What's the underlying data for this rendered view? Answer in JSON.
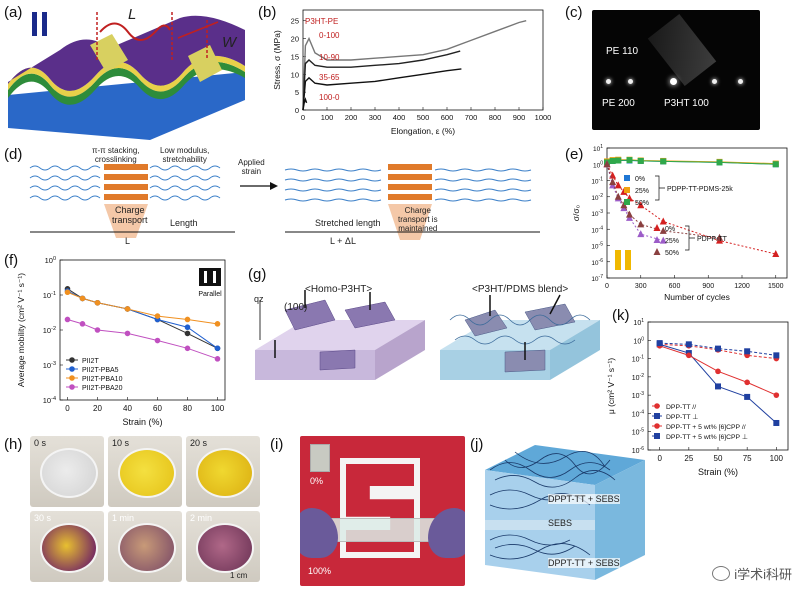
{
  "panels": {
    "a": {
      "label": "(a)",
      "L": "L",
      "W": "W"
    },
    "b": {
      "label": "(b)",
      "ylabel": "Stress, σ (MPa)",
      "xlabel": "Elongation, ε (%)"
    },
    "c": {
      "label": "(c)",
      "pe110": "PE 110",
      "pe200": "PE 200",
      "p3ht100": "P3HT 100"
    },
    "d": {
      "label": "(d)",
      "left_top": "π-π stacking,\ncrosslinking",
      "mid_top": "Low modulus,\nstretchability",
      "charge_transport": "Charge\ntransport",
      "length": "Length",
      "L": "L",
      "applied": "Applied\nstrain",
      "stretched": "Stretched length",
      "L_dL": "L + ΔL",
      "maintained": "Charge\ntransport is\nmaintained"
    },
    "e": {
      "label": "(e)",
      "ylabel": "σ/σ₀",
      "xlabel": "Number of cycles"
    },
    "f": {
      "label": "(f)",
      "ylabel": "Average mobility (cm² V⁻¹ s⁻¹)",
      "xlabel": "Strain (%)",
      "parallel": "Parallel"
    },
    "g": {
      "label": "(g)",
      "homo": "<Homo-P3HT>",
      "blend": "<P3HT/PDMS blend>",
      "qz": "qz",
      "hkl": "(100)"
    },
    "h": {
      "label": "(h)",
      "times": [
        "0 s",
        "10 s",
        "20 s",
        "30 s",
        "1 min",
        "2 min"
      ],
      "scale": "1 cm"
    },
    "i": {
      "label": "(i)",
      "top": "0%",
      "bottom": "100%"
    },
    "j": {
      "label": "(j)",
      "top": "DPPT-TT + SEBS",
      "mid": "SEBS",
      "bot": "DPPT-TT + SEBS"
    },
    "k": {
      "label": "(k)",
      "ylabel": "μ (cm² V⁻¹ s⁻¹)",
      "xlabel": "Strain (%)"
    }
  },
  "watermark": "i学术i科研",
  "chart_data": [
    {
      "id": "b",
      "type": "line",
      "xlabel": "Elongation, ε (%)",
      "ylabel": "Stress, σ (MPa)",
      "xlim": [
        0,
        1000
      ],
      "ylim": [
        0,
        28
      ],
      "xticks": [
        0,
        100,
        200,
        300,
        400,
        500,
        600,
        700,
        800,
        900,
        1000
      ],
      "yticks": [
        0,
        5,
        10,
        15,
        20,
        25
      ],
      "legend_title": "P3HT-PE",
      "series": [
        {
          "name": "0-100",
          "color": "#777777",
          "x": [
            0,
            10,
            25,
            50,
            100,
            200,
            300,
            400,
            500,
            600,
            700,
            800,
            900,
            930
          ],
          "y": [
            0,
            18,
            20,
            16,
            14,
            14,
            14.5,
            15,
            15.5,
            17,
            19.5,
            22,
            24.5,
            25
          ]
        },
        {
          "name": "10-90",
          "color": "#222222",
          "x": [
            0,
            10,
            25,
            50,
            100,
            200,
            300,
            400,
            500,
            600,
            655
          ],
          "y": [
            0,
            13,
            14,
            12.5,
            12,
            12,
            12.5,
            13,
            14,
            15.5,
            16.5
          ]
        },
        {
          "name": "35-65",
          "color": "#111111",
          "x": [
            0,
            10,
            25,
            50,
            100,
            200,
            300,
            400,
            500,
            600,
            660
          ],
          "y": [
            0,
            8,
            9,
            7.5,
            7,
            7.5,
            8,
            9,
            10,
            11,
            11.5
          ]
        },
        {
          "name": "100-0",
          "color": "#111111",
          "x": [
            0,
            5,
            10,
            15
          ],
          "y": [
            0,
            2,
            3,
            2
          ]
        }
      ]
    },
    {
      "id": "e",
      "type": "line",
      "log_y": true,
      "xlabel": "Number of cycles",
      "ylabel": "σ/σ₀",
      "xlim": [
        0,
        1600
      ],
      "ylim_exp": [
        -7,
        1
      ],
      "xticks": [
        0,
        300,
        600,
        900,
        1200,
        1500
      ],
      "ytick_exps": [
        1,
        0,
        -1,
        -2,
        -3,
        -4,
        -5,
        -6,
        -7
      ],
      "groups": [
        {
          "name": "PDPP-TT-PDMS-25k",
          "series": [
            {
              "name": "0%",
              "color": "#1f77d4",
              "marker": "square",
              "x": [
                0,
                50,
                100,
                200,
                300,
                500,
                1000,
                1500
              ],
              "y": [
                1.4,
                1.6,
                1.7,
                1.7,
                1.6,
                1.5,
                1.3,
                1.0
              ]
            },
            {
              "name": "25%",
              "color": "#f0a010",
              "marker": "square",
              "x": [
                0,
                50,
                100,
                200,
                300,
                500,
                1000,
                1500
              ],
              "y": [
                1.5,
                1.8,
                1.9,
                1.9,
                1.7,
                1.6,
                1.4,
                1.1
              ]
            },
            {
              "name": "50%",
              "color": "#2fa84a",
              "marker": "square",
              "x": [
                0,
                50,
                100,
                200,
                300,
                500,
                1000,
                1500
              ],
              "y": [
                1.3,
                1.6,
                1.7,
                1.8,
                1.6,
                1.5,
                1.3,
                1.0
              ]
            }
          ]
        },
        {
          "name": "PDPP-TT",
          "series": [
            {
              "name": "0%",
              "color": "#d42020",
              "marker": "triangle",
              "x": [
                0,
                50,
                100,
                150,
                200,
                300,
                500,
                1000,
                1500
              ],
              "y": [
                1,
                0.2,
                0.05,
                0.02,
                0.008,
                0.003,
                0.0003,
                2e-05,
                3e-06
              ]
            },
            {
              "name": "25%",
              "color": "#9c5cc8",
              "marker": "triangle",
              "x": [
                0,
                50,
                100,
                150,
                200,
                300,
                500
              ],
              "y": [
                1,
                0.05,
                0.008,
                0.002,
                0.0005,
                5e-05,
                2e-05
              ]
            },
            {
              "name": "50%",
              "color": "#8a4040",
              "marker": "triangle",
              "x": [
                0,
                50,
                100,
                150,
                200,
                300,
                500,
                1000
              ],
              "y": [
                1,
                0.08,
                0.01,
                0.003,
                0.0008,
                0.0002,
                8e-05,
                3e-05
              ]
            }
          ]
        }
      ]
    },
    {
      "id": "f",
      "type": "line",
      "log_y": true,
      "xlabel": "Strain (%)",
      "ylabel": "Average mobility (cm² V⁻¹ s⁻¹)",
      "xlim": [
        -5,
        105
      ],
      "ylim_exp": [
        -4,
        0
      ],
      "xticks": [
        0,
        20,
        40,
        60,
        80,
        100
      ],
      "ytick_exps": [
        0,
        -1,
        -2,
        -3,
        -4
      ],
      "series": [
        {
          "name": "PII2T",
          "color": "#333333",
          "marker": "circle",
          "x": [
            0,
            10,
            20,
            40,
            60,
            80,
            100
          ],
          "y": [
            0.15,
            0.08,
            0.06,
            0.04,
            0.02,
            0.008,
            0.003
          ]
        },
        {
          "name": "PII2T-PBA5",
          "color": "#2060d0",
          "marker": "circle",
          "x": [
            0,
            10,
            20,
            40,
            60,
            80,
            100
          ],
          "y": [
            0.13,
            0.08,
            0.06,
            0.04,
            0.02,
            0.012,
            0.003
          ]
        },
        {
          "name": "PII2T-PBA10",
          "color": "#f09020",
          "marker": "circle",
          "x": [
            0,
            10,
            20,
            40,
            60,
            80,
            100
          ],
          "y": [
            0.12,
            0.08,
            0.06,
            0.04,
            0.025,
            0.02,
            0.015
          ]
        },
        {
          "name": "PII2T-PBA20",
          "color": "#c050c0",
          "marker": "circle",
          "x": [
            0,
            10,
            20,
            40,
            60,
            80,
            100
          ],
          "y": [
            0.02,
            0.015,
            0.01,
            0.008,
            0.005,
            0.003,
            0.0015
          ]
        }
      ]
    },
    {
      "id": "k",
      "type": "line",
      "log_y": true,
      "xlabel": "Strain (%)",
      "ylabel": "μ (cm² V⁻¹ s⁻¹)",
      "xlim": [
        -10,
        110
      ],
      "ylim_exp": [
        -6,
        1
      ],
      "xticks": [
        0,
        25,
        50,
        75,
        100
      ],
      "ytick_exps": [
        1,
        0,
        -1,
        -2,
        -3,
        -4,
        -5,
        -6
      ],
      "series": [
        {
          "name": "DPP-TT //",
          "color": "#e03030",
          "marker": "circle",
          "dash": true,
          "x": [
            0,
            25,
            50,
            75,
            100
          ],
          "y": [
            0.6,
            0.5,
            0.3,
            0.15,
            0.1
          ]
        },
        {
          "name": "DPP-TT ⊥",
          "color": "#2040a0",
          "marker": "square",
          "dash": false,
          "x": [
            0,
            25,
            50,
            75,
            100
          ],
          "y": [
            0.6,
            0.2,
            0.003,
            0.0008,
            3e-05
          ]
        },
        {
          "name": "DPP-TT + 5 wt% [6]CPP //",
          "color": "#e03030",
          "marker": "circle",
          "dash": false,
          "x": [
            0,
            25,
            50,
            75,
            100
          ],
          "y": [
            0.5,
            0.15,
            0.02,
            0.005,
            0.001
          ]
        },
        {
          "name": "DPP-TT + 5 wt% [6]CPP ⊥",
          "color": "#2040a0",
          "marker": "square",
          "dash": true,
          "x": [
            0,
            25,
            50,
            75,
            100
          ],
          "y": [
            0.7,
            0.6,
            0.35,
            0.25,
            0.15
          ]
        }
      ]
    }
  ]
}
